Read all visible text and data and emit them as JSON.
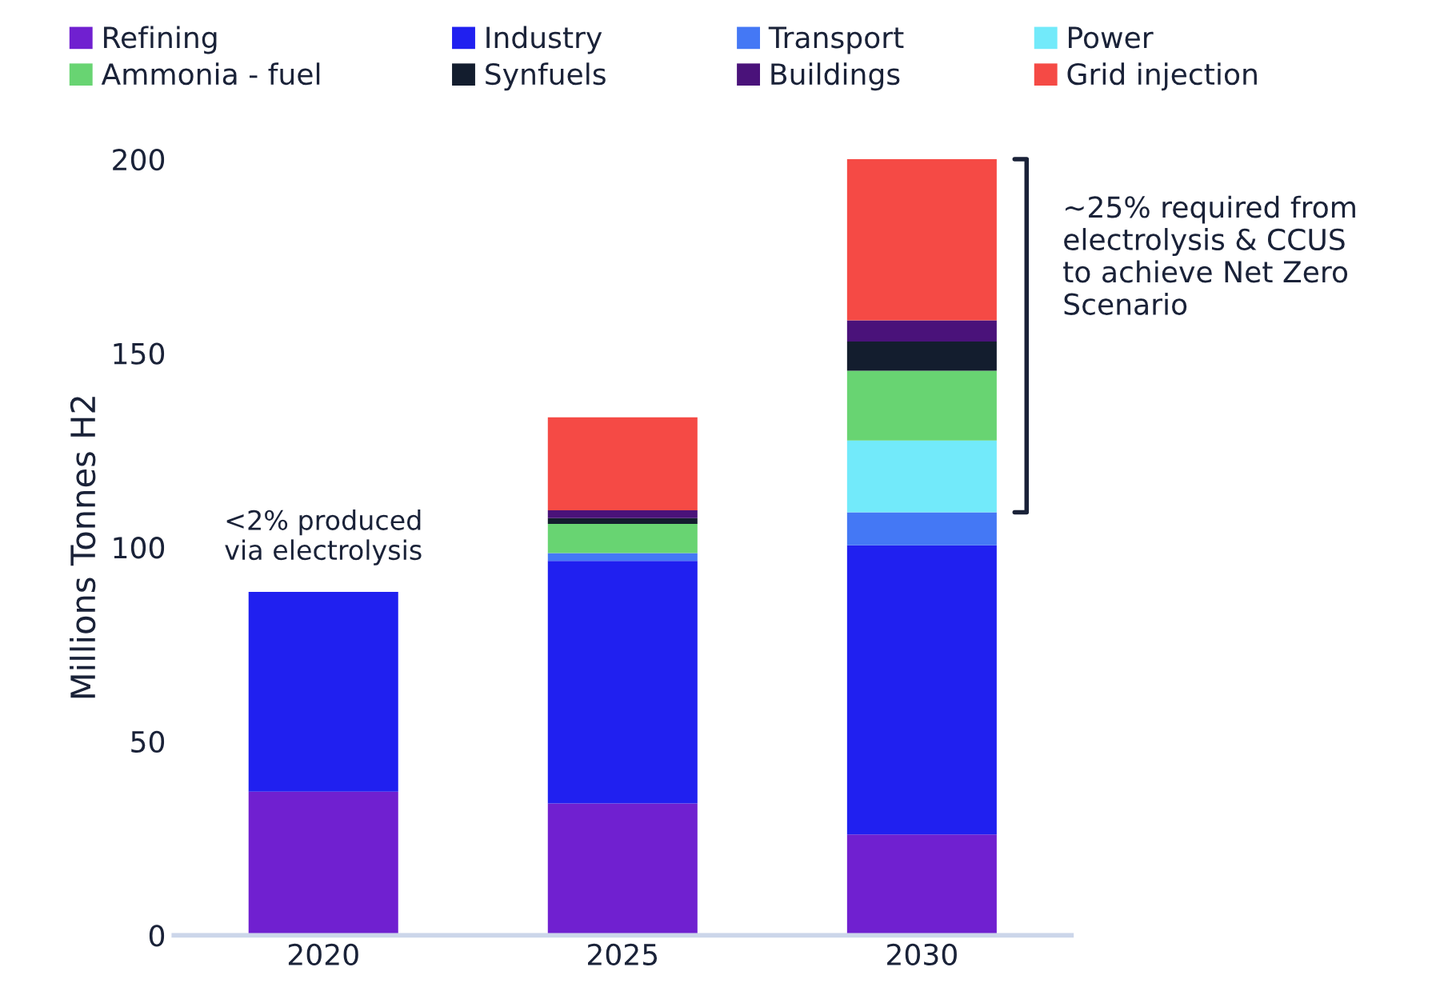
{
  "chart_data": {
    "type": "bar",
    "stacked": true,
    "ylabel": "Millions Tonnes H2",
    "categories": [
      "2020",
      "2025",
      "2030"
    ],
    "series": [
      {
        "name": "Refining",
        "color": "#7020d0",
        "values": [
          37,
          34,
          26
        ]
      },
      {
        "name": "Industry",
        "color": "#2020f0",
        "values": [
          51.5,
          62.5,
          74.5
        ]
      },
      {
        "name": "Transport",
        "color": "#4478f5",
        "values": [
          0,
          2,
          8.5
        ]
      },
      {
        "name": "Power",
        "color": "#72eafa",
        "values": [
          0,
          0,
          18.5
        ]
      },
      {
        "name": "Ammonia - fuel",
        "color": "#68d472",
        "values": [
          0,
          7.5,
          18
        ]
      },
      {
        "name": "Synfuels",
        "color": "#131d2e",
        "values": [
          0,
          1.5,
          7.5
        ]
      },
      {
        "name": "Buildings",
        "color": "#4a127a",
        "values": [
          0,
          2,
          5.5
        ]
      },
      {
        "name": "Grid injection",
        "color": "#f54a45",
        "values": [
          0,
          24,
          41.5
        ]
      }
    ],
    "ylim": [
      0,
      200
    ],
    "yticks": [
      0,
      50,
      100,
      150,
      200
    ],
    "grid": false,
    "legend": "top",
    "annotations": [
      {
        "text": "<2% produced\nvia electrolysis",
        "x": "2020",
        "y": 88.5
      },
      "~25% required from\nelectrolysis & CCUS\nto achieve Net Zero\nScenario"
    ]
  }
}
